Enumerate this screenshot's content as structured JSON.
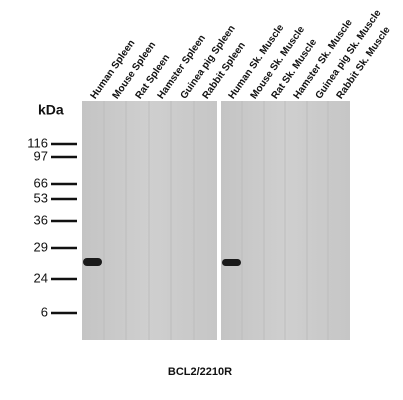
{
  "kda_label": "kDa",
  "markers": [
    "116",
    "97",
    "66",
    "53",
    "36",
    "29",
    "24",
    "6"
  ],
  "panels": [
    {
      "lanes": [
        "Human Spleen",
        "Mouse Spleen",
        "Rat Spleen",
        "Hamster Spleen",
        "Guinea pig Spleen",
        "Rabbit Spleen"
      ]
    },
    {
      "lanes": [
        "Human Sk. Muscle",
        "Mouse Sk. Muscle",
        "Rat Sk. Muscle",
        "Hamster Sk. Muscle",
        "Guinea pig Sk. Muscle",
        "Rabbit Sk. Muscle"
      ]
    }
  ],
  "caption": "BCL2/2210R"
}
